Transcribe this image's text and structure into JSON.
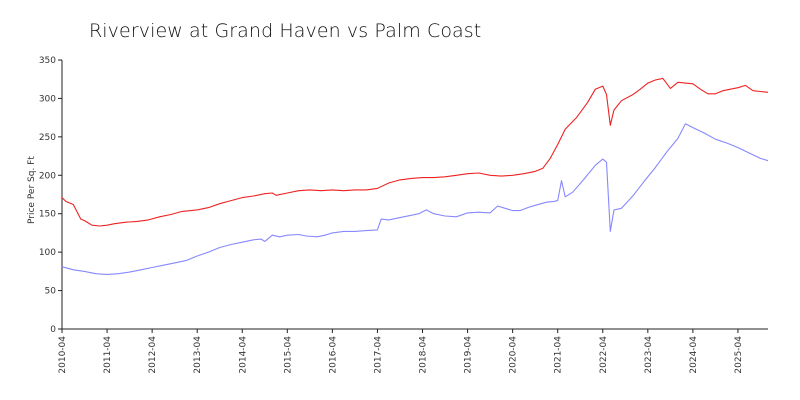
{
  "chart_data": {
    "type": "line",
    "title": "Riverview at Grand Haven vs Palm Coast",
    "xlabel": "",
    "ylabel": "Price Per Sq. Ft",
    "ylim": [
      0,
      350
    ],
    "yticks": [
      0,
      50,
      100,
      150,
      200,
      250,
      300,
      350
    ],
    "xlim": [
      "2010-04",
      "2025-12"
    ],
    "xticks": [
      "2010-04",
      "2011-04",
      "2012-04",
      "2013-04",
      "2014-04",
      "2015-04",
      "2016-04",
      "2017-04",
      "2018-04",
      "2019-04",
      "2020-04",
      "2021-04",
      "2022-04",
      "2023-04",
      "2024-04",
      "2025-04"
    ],
    "grid": false,
    "legend": "none",
    "series": [
      {
        "color": "#ee2222",
        "points": [
          [
            "2010-04",
            171
          ],
          [
            "2010-05",
            166
          ],
          [
            "2010-07",
            162
          ],
          [
            "2010-09",
            143
          ],
          [
            "2010-10",
            141
          ],
          [
            "2010-12",
            135
          ],
          [
            "2011-02",
            134
          ],
          [
            "2011-04",
            135
          ],
          [
            "2011-06",
            137
          ],
          [
            "2011-09",
            139
          ],
          [
            "2011-12",
            140
          ],
          [
            "2012-03",
            142
          ],
          [
            "2012-06",
            146
          ],
          [
            "2012-09",
            149
          ],
          [
            "2012-12",
            153
          ],
          [
            "2013-04",
            155
          ],
          [
            "2013-07",
            158
          ],
          [
            "2013-10",
            163
          ],
          [
            "2014-01",
            167
          ],
          [
            "2014-04",
            171
          ],
          [
            "2014-07",
            173
          ],
          [
            "2014-10",
            176
          ],
          [
            "2014-12",
            177
          ],
          [
            "2015-01",
            174
          ],
          [
            "2015-04",
            177
          ],
          [
            "2015-07",
            180
          ],
          [
            "2015-10",
            181
          ],
          [
            "2016-01",
            180
          ],
          [
            "2016-04",
            181
          ],
          [
            "2016-07",
            180
          ],
          [
            "2016-10",
            181
          ],
          [
            "2017-01",
            181
          ],
          [
            "2017-04",
            183
          ],
          [
            "2017-07",
            190
          ],
          [
            "2017-10",
            194
          ],
          [
            "2018-01",
            196
          ],
          [
            "2018-04",
            197
          ],
          [
            "2018-07",
            197
          ],
          [
            "2018-10",
            198
          ],
          [
            "2019-01",
            200
          ],
          [
            "2019-04",
            202
          ],
          [
            "2019-07",
            203
          ],
          [
            "2019-10",
            200
          ],
          [
            "2020-01",
            199
          ],
          [
            "2020-04",
            200
          ],
          [
            "2020-07",
            202
          ],
          [
            "2020-10",
            205
          ],
          [
            "2020-12",
            209
          ],
          [
            "2021-02",
            222
          ],
          [
            "2021-04",
            240
          ],
          [
            "2021-06",
            260
          ],
          [
            "2021-09",
            275
          ],
          [
            "2021-12",
            295
          ],
          [
            "2022-02",
            312
          ],
          [
            "2022-04",
            316
          ],
          [
            "2022-05",
            305
          ],
          [
            "2022-06",
            265
          ],
          [
            "2022-07",
            285
          ],
          [
            "2022-09",
            297
          ],
          [
            "2022-12",
            305
          ],
          [
            "2023-02",
            312
          ],
          [
            "2023-04",
            320
          ],
          [
            "2023-06",
            324
          ],
          [
            "2023-08",
            326
          ],
          [
            "2023-10",
            313
          ],
          [
            "2023-12",
            321
          ],
          [
            "2024-02",
            320
          ],
          [
            "2024-04",
            319
          ],
          [
            "2024-06",
            312
          ],
          [
            "2024-08",
            306
          ],
          [
            "2024-10",
            306
          ],
          [
            "2024-12",
            310
          ],
          [
            "2025-02",
            312
          ],
          [
            "2025-04",
            314
          ],
          [
            "2025-06",
            317
          ],
          [
            "2025-08",
            310
          ],
          [
            "2025-10",
            309
          ],
          [
            "2025-12",
            308
          ]
        ]
      },
      {
        "color": "#8888ff",
        "points": [
          [
            "2010-04",
            81
          ],
          [
            "2010-07",
            77
          ],
          [
            "2010-10",
            75
          ],
          [
            "2011-01",
            72
          ],
          [
            "2011-04",
            71
          ],
          [
            "2011-07",
            72
          ],
          [
            "2011-10",
            74
          ],
          [
            "2012-01",
            77
          ],
          [
            "2012-04",
            80
          ],
          [
            "2012-07",
            83
          ],
          [
            "2012-10",
            86
          ],
          [
            "2013-01",
            89
          ],
          [
            "2013-04",
            95
          ],
          [
            "2013-07",
            100
          ],
          [
            "2013-10",
            106
          ],
          [
            "2014-01",
            110
          ],
          [
            "2014-04",
            113
          ],
          [
            "2014-07",
            116
          ],
          [
            "2014-09",
            117
          ],
          [
            "2014-10",
            114
          ],
          [
            "2014-12",
            122
          ],
          [
            "2015-02",
            120
          ],
          [
            "2015-04",
            122
          ],
          [
            "2015-07",
            123
          ],
          [
            "2015-09",
            121
          ],
          [
            "2015-12",
            120
          ],
          [
            "2016-02",
            122
          ],
          [
            "2016-04",
            125
          ],
          [
            "2016-07",
            127
          ],
          [
            "2016-10",
            127
          ],
          [
            "2017-01",
            128
          ],
          [
            "2017-04",
            129
          ],
          [
            "2017-05",
            143
          ],
          [
            "2017-07",
            142
          ],
          [
            "2017-10",
            145
          ],
          [
            "2018-01",
            148
          ],
          [
            "2018-03",
            150
          ],
          [
            "2018-05",
            155
          ],
          [
            "2018-07",
            150
          ],
          [
            "2018-10",
            147
          ],
          [
            "2019-01",
            146
          ],
          [
            "2019-04",
            151
          ],
          [
            "2019-07",
            152
          ],
          [
            "2019-10",
            151
          ],
          [
            "2019-12",
            160
          ],
          [
            "2020-02",
            157
          ],
          [
            "2020-04",
            154
          ],
          [
            "2020-06",
            154
          ],
          [
            "2020-08",
            158
          ],
          [
            "2020-10",
            161
          ],
          [
            "2021-01",
            165
          ],
          [
            "2021-03",
            166
          ],
          [
            "2021-04",
            167
          ],
          [
            "2021-05",
            193
          ],
          [
            "2021-06",
            172
          ],
          [
            "2021-08",
            178
          ],
          [
            "2021-11",
            195
          ],
          [
            "2022-02",
            213
          ],
          [
            "2022-04",
            221
          ],
          [
            "2022-05",
            217
          ],
          [
            "2022-06",
            127
          ],
          [
            "2022-07",
            155
          ],
          [
            "2022-09",
            157
          ],
          [
            "2022-12",
            173
          ],
          [
            "2023-03",
            192
          ],
          [
            "2023-06",
            210
          ],
          [
            "2023-09",
            230
          ],
          [
            "2023-12",
            248
          ],
          [
            "2024-02",
            267
          ],
          [
            "2024-04",
            262
          ],
          [
            "2024-07",
            255
          ],
          [
            "2024-10",
            247
          ],
          [
            "2025-01",
            242
          ],
          [
            "2025-04",
            236
          ],
          [
            "2025-07",
            229
          ],
          [
            "2025-10",
            222
          ],
          [
            "2025-12",
            219
          ]
        ]
      }
    ]
  }
}
